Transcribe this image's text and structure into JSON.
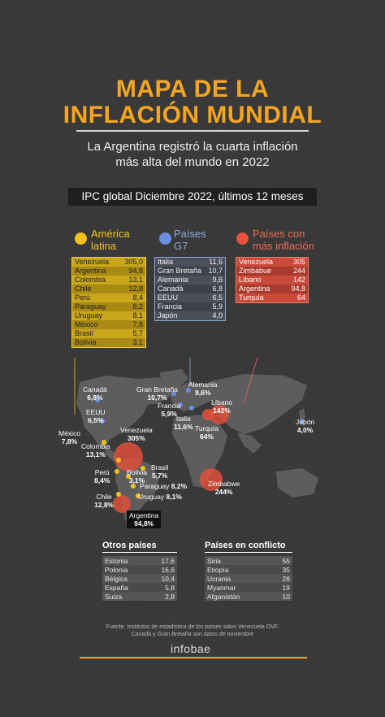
{
  "header": {
    "title_line1": "MAPA DE LA",
    "title_line2": "INFLACIÓN MUNDIAL",
    "subtitle_line1": "La Argentina registró la cuarta inflación",
    "subtitle_line2": "más alta del mundo en 2022",
    "band": "IPC global Diciembre 2022, últimos 12 meses"
  },
  "legend": {
    "latam": {
      "line1": "América",
      "line2": "latina",
      "color": "#f2c21b"
    },
    "g7": {
      "line1": "Países",
      "line2": "G7",
      "color": "#6b8fe0"
    },
    "inflacion": {
      "line1": "Países con",
      "line2": "más inflación",
      "color": "#e8503a"
    }
  },
  "latam_table": [
    {
      "pais": "Venezuela",
      "valor": "305,0"
    },
    {
      "pais": "Argentina",
      "valor": "94,8"
    },
    {
      "pais": "Colombia",
      "valor": "13,1"
    },
    {
      "pais": "Chile",
      "valor": "12,8"
    },
    {
      "pais": "Perú",
      "valor": "8,4"
    },
    {
      "pais": "Paraguay",
      "valor": "8,2"
    },
    {
      "pais": "Uruguay",
      "valor": "8,1"
    },
    {
      "pais": "México",
      "valor": "7,8"
    },
    {
      "pais": "Brasil",
      "valor": "5,7"
    },
    {
      "pais": "Bolivia",
      "valor": "3,1"
    }
  ],
  "g7_table": [
    {
      "pais": "Italia",
      "valor": "11,6"
    },
    {
      "pais": "Gran Bretaña",
      "valor": "10,7"
    },
    {
      "pais": "Alemania",
      "valor": "9,6"
    },
    {
      "pais": "Canadá",
      "valor": "6,8"
    },
    {
      "pais": "EEUU",
      "valor": "6,5"
    },
    {
      "pais": "Francia",
      "valor": "5,9"
    },
    {
      "pais": "Japón",
      "valor": "4,0"
    }
  ],
  "inf_table": [
    {
      "pais": "Venezuela",
      "valor": "305"
    },
    {
      "pais": "Zimbabue",
      "valor": "244"
    },
    {
      "pais": "Líbano",
      "valor": "142"
    },
    {
      "pais": "Argentina",
      "valor": "94,8"
    },
    {
      "pais": "Turquía",
      "valor": "64"
    }
  ],
  "map_labels": {
    "canada": [
      "Canadá",
      "6,8%"
    ],
    "gb": [
      "Gran Bretaña",
      "10,7%"
    ],
    "alemania": [
      "Alemania",
      "9,6%"
    ],
    "francia": [
      "Francia",
      "5,9%"
    ],
    "italia": [
      "Italia",
      "11,6%"
    ],
    "libano": [
      "Líbano",
      "142%"
    ],
    "turquia": [
      "Turquía",
      "64%"
    ],
    "japon": [
      "Japón",
      "4,0%"
    ],
    "eeuu": [
      "EEUU",
      "6,5%"
    ],
    "mexico": [
      "México",
      "7,8%"
    ],
    "venezuela": [
      "Venezuela",
      "305%"
    ],
    "colombia": [
      "Colombia",
      "13,1%"
    ],
    "peru": [
      "Perú",
      "8,4%"
    ],
    "bolivia": [
      "Bolivia",
      "3,1%"
    ],
    "brasil": [
      "Brasil",
      "5,7%"
    ],
    "paraguay": [
      "Paraguay",
      "8,2%"
    ],
    "chile": [
      "Chile",
      "12,8%"
    ],
    "uruguay": [
      "Uruguay",
      "8,1%"
    ],
    "argentina": [
      "Argentina",
      "94,8%"
    ],
    "zimbabwe": [
      "Zimbabwe",
      "244%"
    ]
  },
  "otros": {
    "heading": "Otros países",
    "rows": [
      {
        "pais": "Estonia",
        "valor": "17,6"
      },
      {
        "pais": "Polonia",
        "valor": "16,6"
      },
      {
        "pais": "Bélgica",
        "valor": "10,4"
      },
      {
        "pais": "España",
        "valor": "5,8"
      },
      {
        "pais": "Suiza",
        "valor": "2,8"
      }
    ]
  },
  "conflicto": {
    "heading": "Países en conflicto",
    "rows": [
      {
        "pais": "Siria",
        "valor": "55"
      },
      {
        "pais": "Etiopía",
        "valor": "35"
      },
      {
        "pais": "Ucrania",
        "valor": "26"
      },
      {
        "pais": "Myanmar",
        "valor": "19"
      },
      {
        "pais": "Afganistán",
        "valor": "10"
      }
    ]
  },
  "footer": {
    "source_line1": "Fuente: Institutos de estadística de los países salvo Venezuela OVF.",
    "source_line2": "Canadá y Gran Bretaña son datos de noviembre",
    "brand": "infobae"
  },
  "colors": {
    "accent": "#f5a521",
    "latam": "#c9a61c",
    "g7": "#6b8fe0",
    "inflacion": "#c9493a"
  }
}
